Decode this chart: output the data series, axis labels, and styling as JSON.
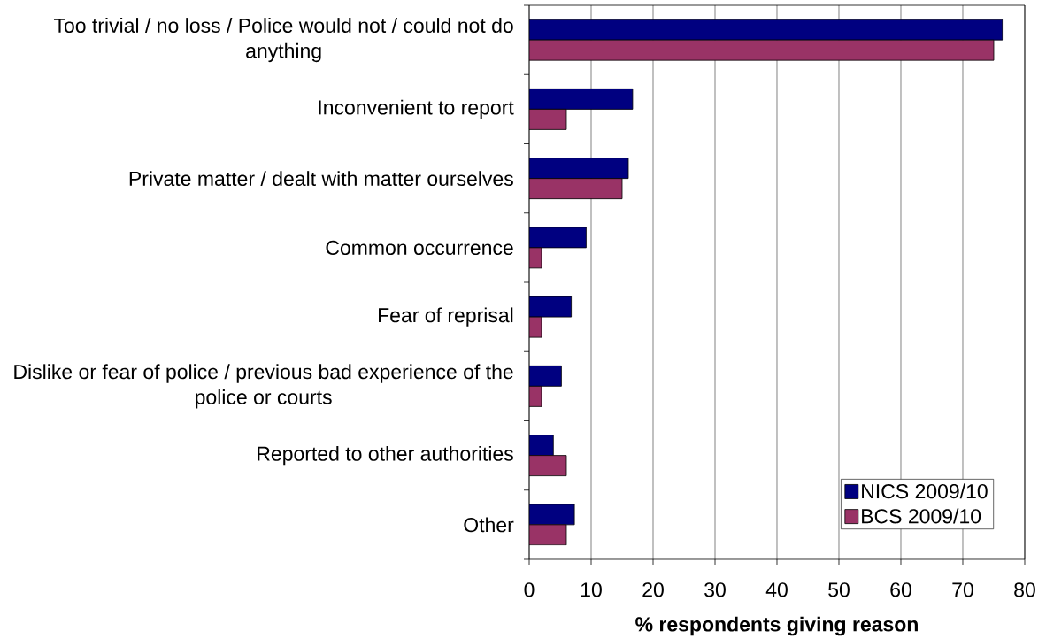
{
  "chart_data": {
    "type": "bar",
    "orientation": "horizontal",
    "xlabel": "% respondents giving reason",
    "categories": [
      "Too trivial / no loss / Police would not / could not do anything",
      "Inconvenient to report",
      "Private matter / dealt with matter ourselves",
      "Common occurrence",
      "Fear of reprisal",
      "Dislike or fear of police / previous bad experience of the police or courts",
      "Reported to other authorities",
      "Other"
    ],
    "series": [
      {
        "name": "NICS 2009/10",
        "color": "#000080",
        "values": [
          76.4,
          16.7,
          16,
          9.2,
          6.8,
          5.2,
          3.9,
          7.3
        ]
      },
      {
        "name": "BCS 2009/10",
        "color": "#993366",
        "values": [
          75,
          6,
          15,
          2,
          2,
          2,
          6,
          6
        ]
      }
    ],
    "xlim": [
      0,
      80
    ],
    "xticks": [
      0,
      10,
      20,
      30,
      40,
      50,
      60,
      70,
      80
    ],
    "grid": "x",
    "legend": "bottom right"
  }
}
